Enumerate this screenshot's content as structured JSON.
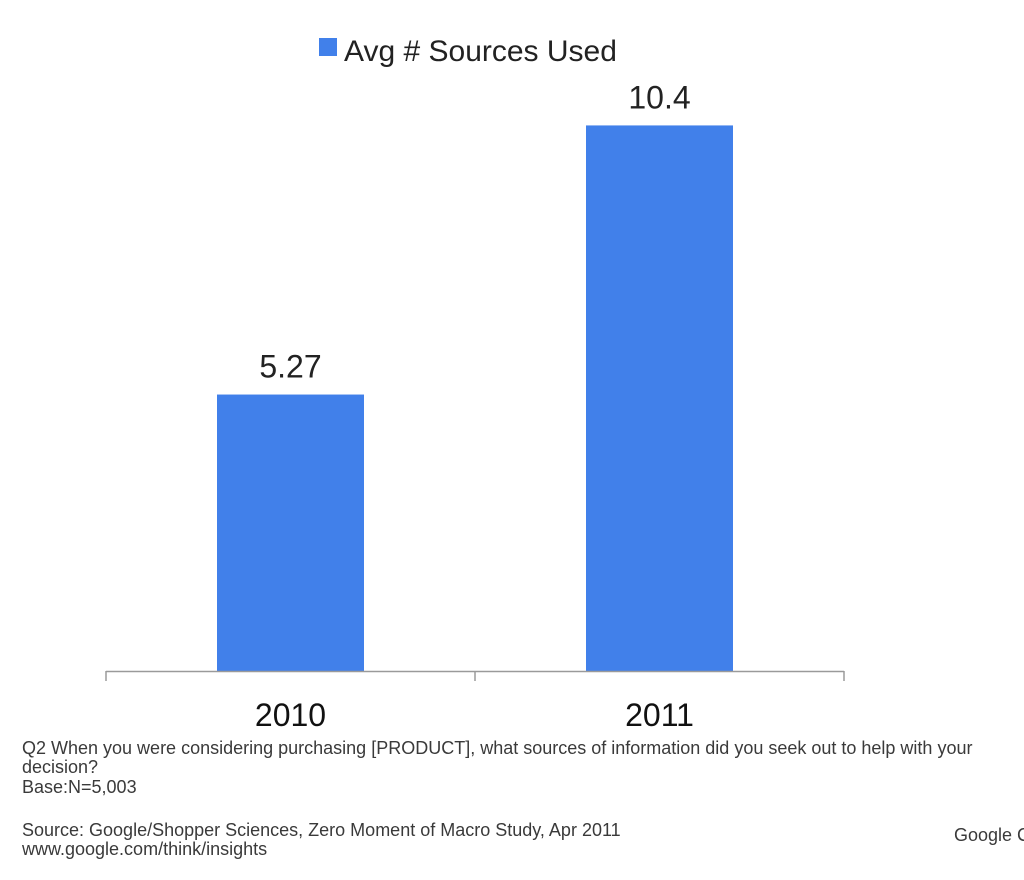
{
  "chart_data": {
    "type": "bar",
    "categories": [
      "2010",
      "2011"
    ],
    "values": [
      5.27,
      10.4
    ],
    "value_labels": [
      "5.27",
      "10.4"
    ],
    "series_name": "Avg # Sources Used",
    "title": "",
    "xlabel": "",
    "ylabel": "",
    "ylim": [
      0,
      12.2
    ],
    "legend": "top-center",
    "grid": false,
    "bar_color": "#4180EA"
  },
  "footnotes": {
    "question": "Q2 When you were considering purchasing [PRODUCT], what sources of information did you seek out to help with your decision?",
    "base": "Base:N=5,003",
    "source": "Source:  Google/Shopper Sciences, Zero Moment of Macro Study, Apr 2011",
    "url": "www.google.com/think/insights"
  },
  "brand": "Google C"
}
